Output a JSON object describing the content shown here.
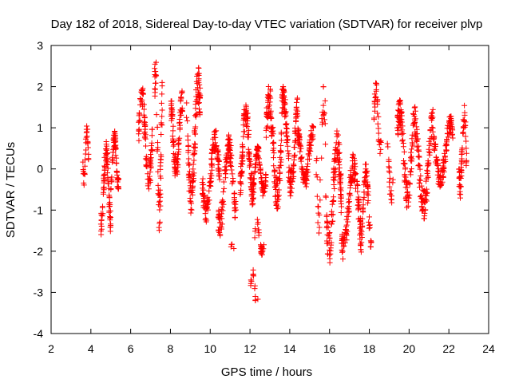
{
  "chart_data": {
    "type": "scatter",
    "title": "Day 182 of 2018, Sidereal Day-to-day VTEC variation (SDTVAR) for receiver plvp",
    "xlabel": "GPS time / hours",
    "ylabel": "SDTVAR / TECUs",
    "xlim": [
      2,
      24
    ],
    "ylim": [
      -4,
      3
    ],
    "xticks": [
      2,
      4,
      6,
      8,
      10,
      12,
      14,
      16,
      18,
      20,
      22,
      24
    ],
    "yticks": [
      -4,
      -3,
      -2,
      -1,
      0,
      1,
      2,
      3
    ],
    "grid": false,
    "marker": "+",
    "color": "#ff0000",
    "series": [
      {
        "name": "SDTVAR",
        "clusters": [
          {
            "t0": 3.6,
            "t1": 3.9,
            "ymin": -0.4,
            "ymax": 1.1,
            "n": 30
          },
          {
            "t0": 4.5,
            "t1": 5.0,
            "ymin": -1.6,
            "ymax": 0.7,
            "n": 80
          },
          {
            "t0": 5.0,
            "t1": 5.4,
            "ymin": -0.6,
            "ymax": 0.95,
            "n": 60
          },
          {
            "t0": 6.4,
            "t1": 7.1,
            "ymin": -0.6,
            "ymax": 2.05,
            "n": 90
          },
          {
            "t0": 7.2,
            "t1": 7.6,
            "ymin": -1.5,
            "ymax": 2.9,
            "n": 60
          },
          {
            "t0": 8.0,
            "t1": 8.6,
            "ymin": -0.3,
            "ymax": 1.9,
            "n": 90
          },
          {
            "t0": 8.8,
            "t1": 9.5,
            "ymin": -1.1,
            "ymax": 2.5,
            "n": 110
          },
          {
            "t0": 9.6,
            "t1": 10.5,
            "ymin": -1.3,
            "ymax": 1.0,
            "n": 110
          },
          {
            "t0": 10.4,
            "t1": 11.3,
            "ymin": -1.65,
            "ymax": 0.85,
            "n": 110
          },
          {
            "t0": 11.0,
            "t1": 11.2,
            "ymin": -1.95,
            "ymax": -1.8,
            "n": 4
          },
          {
            "t0": 11.5,
            "t1": 12.2,
            "ymin": -0.9,
            "ymax": 1.7,
            "n": 120
          },
          {
            "t0": 12.0,
            "t1": 12.4,
            "ymin": -3.45,
            "ymax": -2.3,
            "n": 15
          },
          {
            "t0": 12.2,
            "t1": 12.7,
            "ymin": -2.1,
            "ymax": -1.2,
            "n": 30
          },
          {
            "t0": 12.2,
            "t1": 12.8,
            "ymin": -0.7,
            "ymax": 0.6,
            "n": 70
          },
          {
            "t0": 12.8,
            "t1": 13.6,
            "ymin": -1.0,
            "ymax": 2.05,
            "n": 120
          },
          {
            "t0": 13.6,
            "t1": 14.4,
            "ymin": -0.7,
            "ymax": 2.1,
            "n": 120
          },
          {
            "t0": 14.4,
            "t1": 15.2,
            "ymin": -0.5,
            "ymax": 1.1,
            "n": 100
          },
          {
            "t0": 15.3,
            "t1": 15.8,
            "ymin": -1.6,
            "ymax": 2.25,
            "n": 30
          },
          {
            "t0": 15.8,
            "t1": 16.6,
            "ymin": -2.4,
            "ymax": 1.05,
            "n": 110
          },
          {
            "t0": 16.6,
            "t1": 17.6,
            "ymin": -2.3,
            "ymax": 0.4,
            "n": 130
          },
          {
            "t0": 17.6,
            "t1": 18.1,
            "ymin": -1.9,
            "ymax": 0.2,
            "n": 60
          },
          {
            "t0": 18.2,
            "t1": 18.6,
            "ymin": 0.2,
            "ymax": 2.2,
            "n": 35
          },
          {
            "t0": 18.8,
            "t1": 19.2,
            "ymin": -0.9,
            "ymax": 0.7,
            "n": 20
          },
          {
            "t0": 19.4,
            "t1": 20.2,
            "ymin": -1.0,
            "ymax": 1.7,
            "n": 110
          },
          {
            "t0": 20.2,
            "t1": 21.2,
            "ymin": -1.25,
            "ymax": 1.6,
            "n": 120
          },
          {
            "t0": 21.2,
            "t1": 22.2,
            "ymin": -0.5,
            "ymax": 1.3,
            "n": 110
          },
          {
            "t0": 22.5,
            "t1": 22.9,
            "ymin": -0.75,
            "ymax": 1.65,
            "n": 60
          }
        ]
      }
    ]
  }
}
